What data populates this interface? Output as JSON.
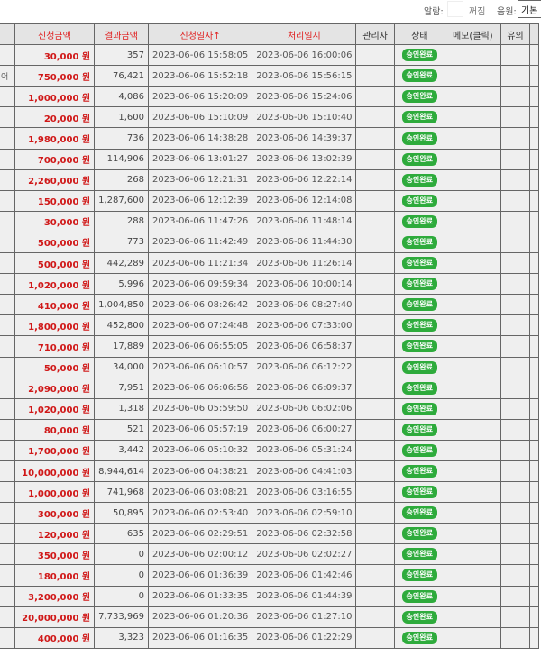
{
  "topbar": {
    "alarm_label": "알람:",
    "alarm_off": "꺼짐",
    "sound_label": "음원:",
    "sound_value": "기본"
  },
  "headers": [
    "",
    "신청금액",
    "결과금액",
    "신청일자↑",
    "처리일시",
    "관리자",
    "상태",
    "메모(클릭)",
    "유의"
  ],
  "currency": "원",
  "rows": [
    {
      "first": "",
      "amount": "30,000",
      "result": "357",
      "applied": "2023-06-06 15:58:05",
      "processed": "2023-06-06 16:00:06",
      "status": "승인완료"
    },
    {
      "first": "어",
      "amount": "750,000",
      "result": "76,421",
      "applied": "2023-06-06 15:52:18",
      "processed": "2023-06-06 15:56:15",
      "status": "승인완료"
    },
    {
      "first": "",
      "amount": "1,000,000",
      "result": "4,086",
      "applied": "2023-06-06 15:20:09",
      "processed": "2023-06-06 15:24:06",
      "status": "승인완료"
    },
    {
      "first": "",
      "amount": "20,000",
      "result": "1,600",
      "applied": "2023-06-06 15:10:09",
      "processed": "2023-06-06 15:10:40",
      "status": "승인완료"
    },
    {
      "first": "",
      "amount": "1,980,000",
      "result": "736",
      "applied": "2023-06-06 14:38:28",
      "processed": "2023-06-06 14:39:37",
      "status": "승인완료"
    },
    {
      "first": "",
      "amount": "700,000",
      "result": "114,906",
      "applied": "2023-06-06 13:01:27",
      "processed": "2023-06-06 13:02:39",
      "status": "승인완료"
    },
    {
      "first": "",
      "amount": "2,260,000",
      "result": "268",
      "applied": "2023-06-06 12:21:31",
      "processed": "2023-06-06 12:22:14",
      "status": "승인완료"
    },
    {
      "first": "",
      "amount": "150,000",
      "result": "1,287,600",
      "applied": "2023-06-06 12:12:39",
      "processed": "2023-06-06 12:14:08",
      "status": "승인완료"
    },
    {
      "first": "",
      "amount": "30,000",
      "result": "288",
      "applied": "2023-06-06 11:47:26",
      "processed": "2023-06-06 11:48:14",
      "status": "승인완료"
    },
    {
      "first": "",
      "amount": "500,000",
      "result": "773",
      "applied": "2023-06-06 11:42:49",
      "processed": "2023-06-06 11:44:30",
      "status": "승인완료"
    },
    {
      "first": "",
      "amount": "500,000",
      "result": "442,289",
      "applied": "2023-06-06 11:21:34",
      "processed": "2023-06-06 11:26:14",
      "status": "승인완료"
    },
    {
      "first": "",
      "amount": "1,020,000",
      "result": "5,996",
      "applied": "2023-06-06 09:59:34",
      "processed": "2023-06-06 10:00:14",
      "status": "승인완료"
    },
    {
      "first": "",
      "amount": "410,000",
      "result": "1,004,850",
      "applied": "2023-06-06 08:26:42",
      "processed": "2023-06-06 08:27:40",
      "status": "승인완료"
    },
    {
      "first": "",
      "amount": "1,800,000",
      "result": "452,800",
      "applied": "2023-06-06 07:24:48",
      "processed": "2023-06-06 07:33:00",
      "status": "승인완료"
    },
    {
      "first": "",
      "amount": "710,000",
      "result": "17,889",
      "applied": "2023-06-06 06:55:05",
      "processed": "2023-06-06 06:58:37",
      "status": "승인완료"
    },
    {
      "first": "",
      "amount": "50,000",
      "result": "34,000",
      "applied": "2023-06-06 06:10:57",
      "processed": "2023-06-06 06:12:22",
      "status": "승인완료"
    },
    {
      "first": "",
      "amount": "2,090,000",
      "result": "7,951",
      "applied": "2023-06-06 06:06:56",
      "processed": "2023-06-06 06:09:37",
      "status": "승인완료"
    },
    {
      "first": "",
      "amount": "1,020,000",
      "result": "1,318",
      "applied": "2023-06-06 05:59:50",
      "processed": "2023-06-06 06:02:06",
      "status": "승인완료"
    },
    {
      "first": "",
      "amount": "80,000",
      "result": "521",
      "applied": "2023-06-06 05:57:19",
      "processed": "2023-06-06 06:00:27",
      "status": "승인완료"
    },
    {
      "first": "",
      "amount": "1,700,000",
      "result": "3,442",
      "applied": "2023-06-06 05:10:32",
      "processed": "2023-06-06 05:31:24",
      "status": "승인완료"
    },
    {
      "first": "",
      "amount": "10,000,000",
      "result": "8,944,614",
      "applied": "2023-06-06 04:38:21",
      "processed": "2023-06-06 04:41:03",
      "status": "승인완료"
    },
    {
      "first": "",
      "amount": "1,000,000",
      "result": "741,968",
      "applied": "2023-06-06 03:08:21",
      "processed": "2023-06-06 03:16:55",
      "status": "승인완료"
    },
    {
      "first": "",
      "amount": "300,000",
      "result": "50,895",
      "applied": "2023-06-06 02:53:40",
      "processed": "2023-06-06 02:59:10",
      "status": "승인완료"
    },
    {
      "first": "",
      "amount": "120,000",
      "result": "635",
      "applied": "2023-06-06 02:29:51",
      "processed": "2023-06-06 02:32:58",
      "status": "승인완료"
    },
    {
      "first": "",
      "amount": "350,000",
      "result": "0",
      "applied": "2023-06-06 02:00:12",
      "processed": "2023-06-06 02:02:27",
      "status": "승인완료"
    },
    {
      "first": "",
      "amount": "180,000",
      "result": "0",
      "applied": "2023-06-06 01:36:39",
      "processed": "2023-06-06 01:42:46",
      "status": "승인완료"
    },
    {
      "first": "",
      "amount": "3,200,000",
      "result": "0",
      "applied": "2023-06-06 01:33:35",
      "processed": "2023-06-06 01:44:39",
      "status": "승인완료"
    },
    {
      "first": "",
      "amount": "20,000,000",
      "result": "7,733,969",
      "applied": "2023-06-06 01:20:36",
      "processed": "2023-06-06 01:27:10",
      "status": "승인완료"
    },
    {
      "first": "",
      "amount": "400,000",
      "result": "3,323",
      "applied": "2023-06-06 01:16:35",
      "processed": "2023-06-06 01:22:29",
      "status": "승인완료"
    }
  ],
  "colors": {
    "amount": "#d01818",
    "header_red": "#e02020",
    "badge": "#2eab3c"
  }
}
